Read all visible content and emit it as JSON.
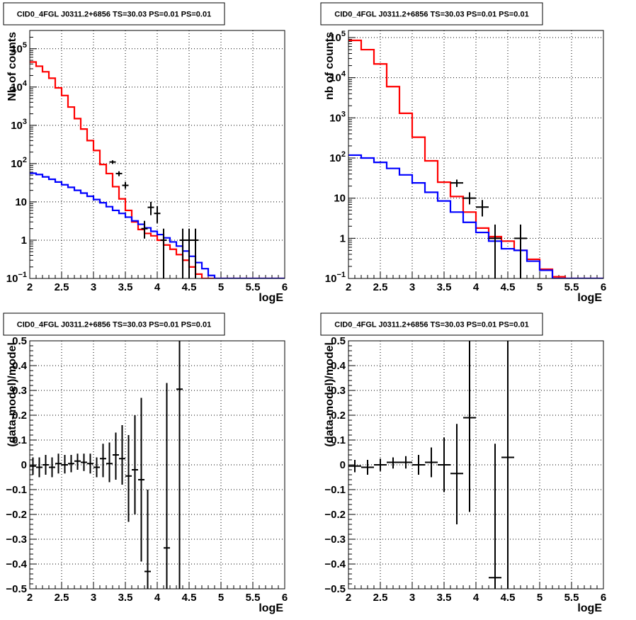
{
  "chart_data": [
    {
      "type": "line",
      "title": "CID0_4FGL J0311.2+6856 TS=30.03 PS=0.01 PS=0.01",
      "xlabel": "logE",
      "ylabel": "Nb of counts",
      "xlim": [
        2,
        6
      ],
      "ylim": [
        0.1,
        300000
      ],
      "yscale": "log",
      "grid": true,
      "x_ticks": [
        "2",
        "2.5",
        "3",
        "3.5",
        "4",
        "4.5",
        "5",
        "5.5",
        "6"
      ],
      "y_ticks": [
        {
          "value": 0.1,
          "label": "10",
          "exp": "−1"
        },
        {
          "value": 1,
          "label": "1",
          "exp": ""
        },
        {
          "value": 10,
          "label": "10",
          "exp": ""
        },
        {
          "value": 100,
          "label": "10",
          "exp": "2"
        },
        {
          "value": 1000,
          "label": "10",
          "exp": "3"
        },
        {
          "value": 10000,
          "label": "10",
          "exp": "4"
        },
        {
          "value": 100000,
          "label": "10",
          "exp": "5"
        }
      ],
      "bin_edges": [
        2.0,
        2.1,
        2.2,
        2.3,
        2.4,
        2.5,
        2.6,
        2.7,
        2.8,
        2.9,
        3.0,
        3.1,
        3.2,
        3.3,
        3.4,
        3.5,
        3.6,
        3.7,
        3.8,
        3.9,
        4.0,
        4.1,
        4.2,
        4.3,
        4.4,
        4.5,
        4.6,
        4.7,
        4.8,
        4.9,
        5.0,
        5.1,
        5.2,
        5.3,
        5.4,
        5.5,
        5.6,
        5.7,
        5.8,
        5.9,
        6.0
      ],
      "series": [
        {
          "color": "#ff0000",
          "kind": "step",
          "values": [
            45000,
            35000,
            25000,
            17000,
            9500,
            6000,
            3000,
            1500,
            800,
            400,
            220,
            95,
            55,
            25,
            12,
            6,
            3,
            1.9,
            1.5,
            1.3,
            1.0,
            0.75,
            0.58,
            0.42,
            0.3,
            0.2,
            0.13,
            0.1,
            0.1,
            0.1,
            0.1,
            0.1,
            0.1,
            0.1,
            0.1,
            0.1,
            0.1,
            0.1,
            0.1,
            0.1
          ]
        },
        {
          "color": "#0000ff",
          "kind": "step",
          "values": [
            56,
            52,
            45,
            39,
            33,
            28,
            24,
            20,
            17,
            14,
            11.5,
            9.5,
            7.5,
            6,
            5,
            4,
            3.2,
            2.6,
            2.1,
            1.7,
            1.4,
            1.15,
            0.9,
            0.7,
            0.52,
            0.38,
            0.26,
            0.18,
            0.12,
            0.1,
            0.1,
            0.1,
            0.1,
            0.1,
            0.1,
            0.1,
            0.1,
            0.1,
            0.1,
            0.1
          ]
        },
        {
          "color": "#000000",
          "kind": "points",
          "points": [
            {
              "x": 3.3,
              "y": 110,
              "ylo": 98,
              "yhi": 122
            },
            {
              "x": 3.4,
              "y": 55,
              "ylo": 47,
              "yhi": 63
            },
            {
              "x": 3.5,
              "y": 27,
              "ylo": 22,
              "yhi": 33
            },
            {
              "x": 3.8,
              "y": 2.0,
              "ylo": 1.1,
              "yhi": 3.2
            },
            {
              "x": 3.9,
              "y": 7.2,
              "ylo": 4.5,
              "yhi": 10
            },
            {
              "x": 4.0,
              "y": 5.0,
              "ylo": 2.8,
              "yhi": 7.8
            },
            {
              "x": 4.1,
              "y": 1.0,
              "ylo": 0.1,
              "yhi": 2.0
            },
            {
              "x": 4.4,
              "y": 1.0,
              "ylo": 0.1,
              "yhi": 2.0
            },
            {
              "x": 4.5,
              "y": 1.0,
              "ylo": 0.1,
              "yhi": 2.0
            },
            {
              "x": 4.6,
              "y": 1.0,
              "ylo": 0.1,
              "yhi": 2.0
            }
          ]
        }
      ]
    },
    {
      "type": "line",
      "title": "CID0_4FGL J0311.2+6856 TS=30.03 PS=0.01 PS=0.01",
      "xlabel": "logE",
      "ylabel": "nb of counts",
      "xlim": [
        2,
        6
      ],
      "ylim": [
        0.1,
        150000
      ],
      "yscale": "log",
      "grid": true,
      "x_ticks": [
        "2",
        "2.5",
        "3",
        "3.5",
        "4",
        "4.5",
        "5",
        "5.5",
        "6"
      ],
      "y_ticks": [
        {
          "value": 0.1,
          "label": "10",
          "exp": "−1"
        },
        {
          "value": 1,
          "label": "1",
          "exp": ""
        },
        {
          "value": 10,
          "label": "10",
          "exp": ""
        },
        {
          "value": 100,
          "label": "10",
          "exp": "2"
        },
        {
          "value": 1000,
          "label": "10",
          "exp": "3"
        },
        {
          "value": 10000,
          "label": "10",
          "exp": "4"
        },
        {
          "value": 100000,
          "label": "10",
          "exp": "5"
        }
      ],
      "bin_edges": [
        2.0,
        2.2,
        2.4,
        2.6,
        2.8,
        3.0,
        3.2,
        3.4,
        3.6,
        3.8,
        4.0,
        4.2,
        4.4,
        4.6,
        4.8,
        5.0,
        5.2,
        5.4,
        5.6,
        5.8,
        6.0
      ],
      "series": [
        {
          "color": "#ff0000",
          "kind": "step",
          "values": [
            85000,
            50000,
            22000,
            6000,
            1300,
            330,
            85,
            25,
            11,
            4.5,
            1.8,
            1.1,
            0.85,
            0.5,
            0.3,
            0.17,
            0.11,
            0.1,
            0.1,
            0.1
          ]
        },
        {
          "color": "#0000ff",
          "kind": "step",
          "values": [
            118,
            100,
            78,
            55,
            38,
            24,
            14,
            8.5,
            4.5,
            2.5,
            1.4,
            0.85,
            0.55,
            0.5,
            0.27,
            0.16,
            0.1,
            0.1,
            0.1,
            0.1
          ]
        },
        {
          "color": "#000000",
          "kind": "points",
          "points": [
            {
              "x": 3.7,
              "y": 24,
              "ylo": 19,
              "yhi": 29
            },
            {
              "x": 3.9,
              "y": 10,
              "ylo": 7,
              "yhi": 14
            },
            {
              "x": 4.1,
              "y": 6,
              "ylo": 3.5,
              "yhi": 9
            },
            {
              "x": 4.3,
              "y": 1.0,
              "ylo": 0.1,
              "yhi": 2.2
            },
            {
              "x": 4.7,
              "y": 1.0,
              "ylo": 0.1,
              "yhi": 2.2
            }
          ]
        }
      ]
    },
    {
      "type": "scatter",
      "title": "CID0_4FGL J0311.2+6856 TS=30.03 PS=0.01 PS=0.01",
      "xlabel": "logE",
      "ylabel": "(data-model)/model",
      "xlim": [
        2,
        6
      ],
      "ylim": [
        -0.5,
        0.5
      ],
      "yscale": "linear",
      "grid": true,
      "x_ticks": [
        "2",
        "2.5",
        "3",
        "3.5",
        "4",
        "4.5",
        "5",
        "5.5",
        "6"
      ],
      "y_ticks": [
        {
          "value": -0.5,
          "label": "−0.5"
        },
        {
          "value": -0.4,
          "label": "−0.4"
        },
        {
          "value": -0.3,
          "label": "−0.3"
        },
        {
          "value": -0.2,
          "label": "−0.2"
        },
        {
          "value": -0.1,
          "label": "−0.1"
        },
        {
          "value": 0,
          "label": "0"
        },
        {
          "value": 0.1,
          "label": "0.1"
        },
        {
          "value": 0.2,
          "label": "0.2"
        },
        {
          "value": 0.3,
          "label": "0.3"
        },
        {
          "value": 0.4,
          "label": "0.4"
        },
        {
          "value": 0.5,
          "label": "0.5"
        }
      ],
      "series": [
        {
          "color": "#000000",
          "kind": "points",
          "points": [
            {
              "x": 2.05,
              "y": -0.005,
              "ylo": -0.04,
              "yhi": 0.03
            },
            {
              "x": 2.15,
              "y": -0.01,
              "ylo": -0.05,
              "yhi": 0.03
            },
            {
              "x": 2.25,
              "y": 0.0,
              "ylo": -0.04,
              "yhi": 0.04
            },
            {
              "x": 2.35,
              "y": -0.01,
              "ylo": -0.05,
              "yhi": 0.03
            },
            {
              "x": 2.45,
              "y": 0.005,
              "ylo": -0.035,
              "yhi": 0.045
            },
            {
              "x": 2.55,
              "y": 0.0,
              "ylo": -0.035,
              "yhi": 0.04
            },
            {
              "x": 2.65,
              "y": 0.005,
              "ylo": -0.03,
              "yhi": 0.04
            },
            {
              "x": 2.75,
              "y": 0.015,
              "ylo": -0.02,
              "yhi": 0.045
            },
            {
              "x": 2.85,
              "y": 0.01,
              "ylo": -0.025,
              "yhi": 0.045
            },
            {
              "x": 2.95,
              "y": 0.005,
              "ylo": -0.035,
              "yhi": 0.045
            },
            {
              "x": 3.05,
              "y": -0.01,
              "ylo": -0.05,
              "yhi": 0.03
            },
            {
              "x": 3.15,
              "y": 0.025,
              "ylo": -0.05,
              "yhi": 0.085
            },
            {
              "x": 3.25,
              "y": 0.005,
              "ylo": -0.07,
              "yhi": 0.09
            },
            {
              "x": 3.35,
              "y": 0.04,
              "ylo": -0.06,
              "yhi": 0.13
            },
            {
              "x": 3.45,
              "y": 0.025,
              "ylo": -0.08,
              "yhi": 0.16
            },
            {
              "x": 3.55,
              "y": -0.045,
              "ylo": -0.23,
              "yhi": 0.12
            },
            {
              "x": 3.65,
              "y": -0.02,
              "ylo": -0.2,
              "yhi": 0.2
            },
            {
              "x": 3.75,
              "y": -0.06,
              "ylo": -0.39,
              "yhi": 0.27
            },
            {
              "x": 3.85,
              "y": -0.43,
              "ylo": -0.5,
              "yhi": -0.1
            },
            {
              "x": 4.15,
              "y": -0.335,
              "ylo": -0.5,
              "yhi": 0.33
            },
            {
              "x": 4.35,
              "y": 0.305,
              "ylo": -0.5,
              "yhi": 0.5
            }
          ]
        }
      ]
    },
    {
      "type": "scatter",
      "title": "CID0_4FGL J0311.2+6856 TS=30.03 PS=0.01 PS=0.01",
      "xlabel": "logE",
      "ylabel": "(data-model)/model",
      "xlim": [
        2,
        6
      ],
      "ylim": [
        -0.5,
        0.5
      ],
      "yscale": "linear",
      "grid": true,
      "x_ticks": [
        "2",
        "2.5",
        "3",
        "3.5",
        "4",
        "4.5",
        "5",
        "5.5",
        "6"
      ],
      "y_ticks": [
        {
          "value": -0.5,
          "label": "−0.5"
        },
        {
          "value": -0.4,
          "label": "−0.4"
        },
        {
          "value": -0.3,
          "label": "−0.3"
        },
        {
          "value": -0.2,
          "label": "−0.2"
        },
        {
          "value": -0.1,
          "label": "−0.1"
        },
        {
          "value": 0,
          "label": "0"
        },
        {
          "value": 0.1,
          "label": "0.1"
        },
        {
          "value": 0.2,
          "label": "0.2"
        },
        {
          "value": 0.3,
          "label": "0.3"
        },
        {
          "value": 0.4,
          "label": "0.4"
        },
        {
          "value": 0.5,
          "label": "0.5"
        }
      ],
      "series": [
        {
          "color": "#000000",
          "kind": "points",
          "points": [
            {
              "x": 2.1,
              "y": -0.005,
              "ylo": -0.03,
              "yhi": 0.02
            },
            {
              "x": 2.3,
              "y": -0.01,
              "ylo": -0.04,
              "yhi": 0.02
            },
            {
              "x": 2.5,
              "y": 0.0,
              "ylo": -0.025,
              "yhi": 0.025
            },
            {
              "x": 2.7,
              "y": 0.01,
              "ylo": -0.015,
              "yhi": 0.03
            },
            {
              "x": 2.9,
              "y": 0.01,
              "ylo": -0.015,
              "yhi": 0.035
            },
            {
              "x": 3.1,
              "y": 0.0,
              "ylo": -0.04,
              "yhi": 0.04
            },
            {
              "x": 3.3,
              "y": 0.01,
              "ylo": -0.05,
              "yhi": 0.07
            },
            {
              "x": 3.5,
              "y": 0.0,
              "ylo": -0.11,
              "yhi": 0.11
            },
            {
              "x": 3.7,
              "y": -0.035,
              "ylo": -0.24,
              "yhi": 0.165
            },
            {
              "x": 3.9,
              "y": 0.19,
              "ylo": -0.19,
              "yhi": 0.5
            },
            {
              "x": 4.3,
              "y": -0.455,
              "ylo": -0.5,
              "yhi": 0.085
            },
            {
              "x": 4.5,
              "y": 0.03,
              "ylo": -0.5,
              "yhi": 0.5
            }
          ]
        }
      ]
    }
  ]
}
